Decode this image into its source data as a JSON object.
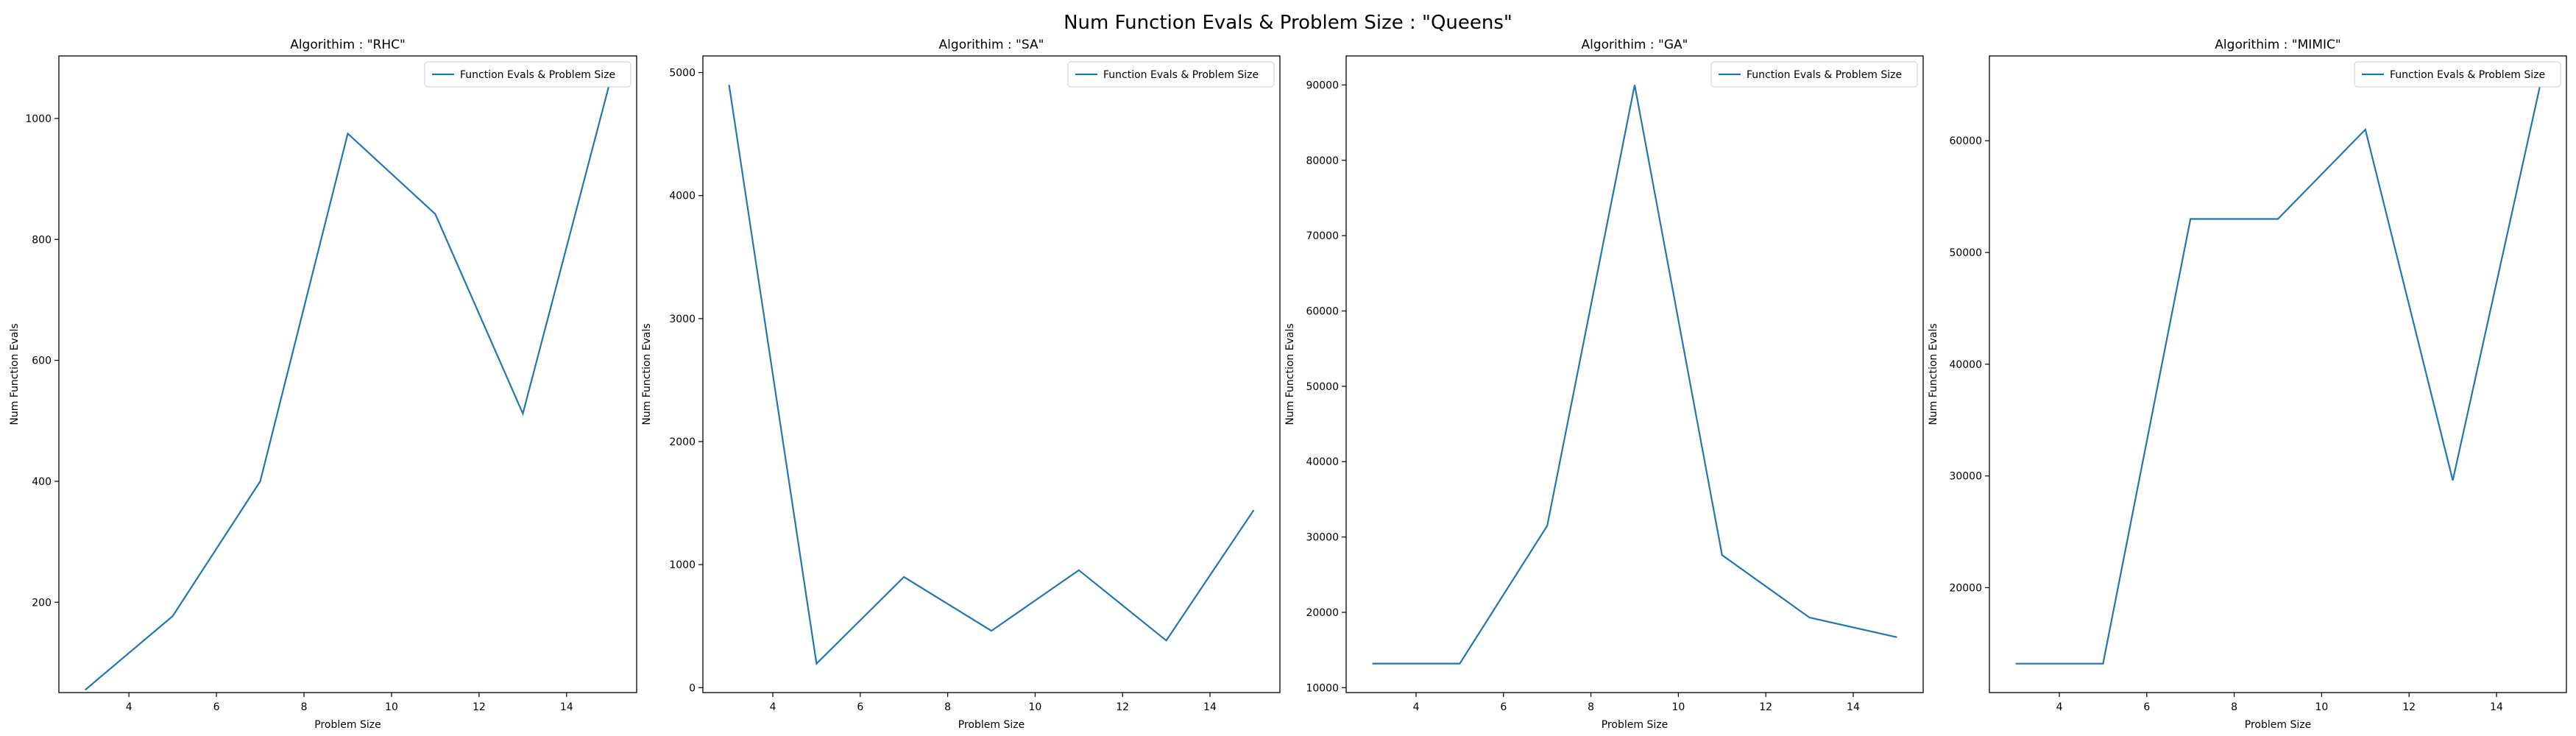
{
  "figure": {
    "suptitle": "Num Function Evals & Problem Size : \"Queens\""
  },
  "chart_data": [
    {
      "type": "line",
      "title": "Algorithim : \"RHC\"",
      "xlabel": "Problem Size",
      "ylabel": "Num Function Evals",
      "x": [
        3,
        5,
        7,
        9,
        11,
        13,
        15
      ],
      "series": [
        {
          "name": "Function Evals & Problem Size",
          "values": [
            55,
            177,
            400,
            975,
            842,
            512,
            1063
          ],
          "color": "#1f77b4"
        }
      ],
      "xlim": [
        2.4,
        15.6
      ],
      "ylim": [
        50.6,
        1103.4
      ],
      "xticks": [
        4,
        6,
        8,
        10,
        12,
        14
      ],
      "yticks": [
        200,
        400,
        600,
        800,
        1000
      ],
      "legend": "upper right",
      "grid": false
    },
    {
      "type": "line",
      "title": "Algorithim : \"SA\"",
      "xlabel": "Problem Size",
      "ylabel": "Num Function Evals",
      "x": [
        3,
        5,
        7,
        9,
        11,
        13,
        15
      ],
      "series": [
        {
          "name": "Function Evals & Problem Size",
          "values": [
            4900,
            195,
            900,
            462,
            955,
            383,
            1443
          ],
          "color": "#1f77b4"
        }
      ],
      "xlim": [
        2.4,
        15.6
      ],
      "ylim": [
        -40,
        5135
      ],
      "xticks": [
        4,
        6,
        8,
        10,
        12,
        14
      ],
      "yticks": [
        0,
        1000,
        2000,
        3000,
        4000,
        5000
      ],
      "legend": "upper right",
      "grid": false
    },
    {
      "type": "line",
      "title": "Algorithim : \"GA\"",
      "xlabel": "Problem Size",
      "ylabel": "Num Function Evals",
      "x": [
        3,
        5,
        7,
        9,
        11,
        13,
        15
      ],
      "series": [
        {
          "name": "Function Evals & Problem Size",
          "values": [
            13200,
            13200,
            31500,
            90000,
            27600,
            19300,
            16700
          ],
          "color": "#1f77b4"
        }
      ],
      "xlim": [
        2.4,
        15.6
      ],
      "ylim": [
        9350,
        93850
      ],
      "xticks": [
        4,
        6,
        8,
        10,
        12,
        14
      ],
      "yticks": [
        10000,
        20000,
        30000,
        40000,
        50000,
        60000,
        70000,
        80000,
        90000
      ],
      "legend": "upper right",
      "grid": false
    },
    {
      "type": "line",
      "title": "Algorithim : \"MIMIC\"",
      "xlabel": "Problem Size",
      "ylabel": "Num Function Evals",
      "x": [
        3,
        5,
        7,
        9,
        11,
        13,
        15
      ],
      "series": [
        {
          "name": "Function Evals & Problem Size",
          "values": [
            13200,
            13200,
            53000,
            53000,
            61000,
            29600,
            65000
          ],
          "color": "#1f77b4"
        }
      ],
      "xlim": [
        2.4,
        15.6
      ],
      "ylim": [
        10610,
        67590
      ],
      "xticks": [
        4,
        6,
        8,
        10,
        12,
        14
      ],
      "yticks": [
        20000,
        30000,
        40000,
        50000,
        60000
      ],
      "legend": "upper right",
      "grid": false
    }
  ]
}
